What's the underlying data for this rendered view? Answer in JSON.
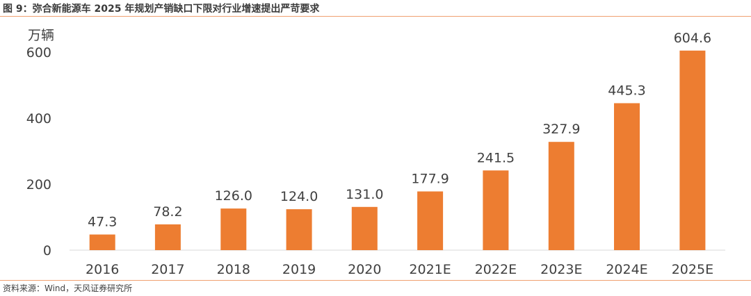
{
  "title": "图 9：弥合新能源车 2025 年规划产销缺口下限对行业增速提出严苛要求",
  "source": "资料来源：Wind，天风证券研究所",
  "colors": {
    "bar": "#ed7d31",
    "axis": "#d9d9d9",
    "rule": "#f0a070"
  },
  "chart_data": {
    "type": "bar",
    "categories": [
      "2016",
      "2017",
      "2018",
      "2019",
      "2020",
      "2021E",
      "2022E",
      "2023E",
      "2024E",
      "2025E"
    ],
    "values": [
      47.3,
      78.2,
      126.0,
      124.0,
      131.0,
      177.9,
      241.5,
      327.9,
      445.3,
      604.6
    ],
    "value_labels": [
      "47.3",
      "78.2",
      "126.0",
      "124.0",
      "131.0",
      "177.9",
      "241.5",
      "327.9",
      "445.3",
      "604.6"
    ],
    "ylabel": "万辆",
    "yticks": [
      "0",
      "200",
      "400",
      "600"
    ],
    "ylim": [
      0,
      600
    ],
    "grid": false
  }
}
